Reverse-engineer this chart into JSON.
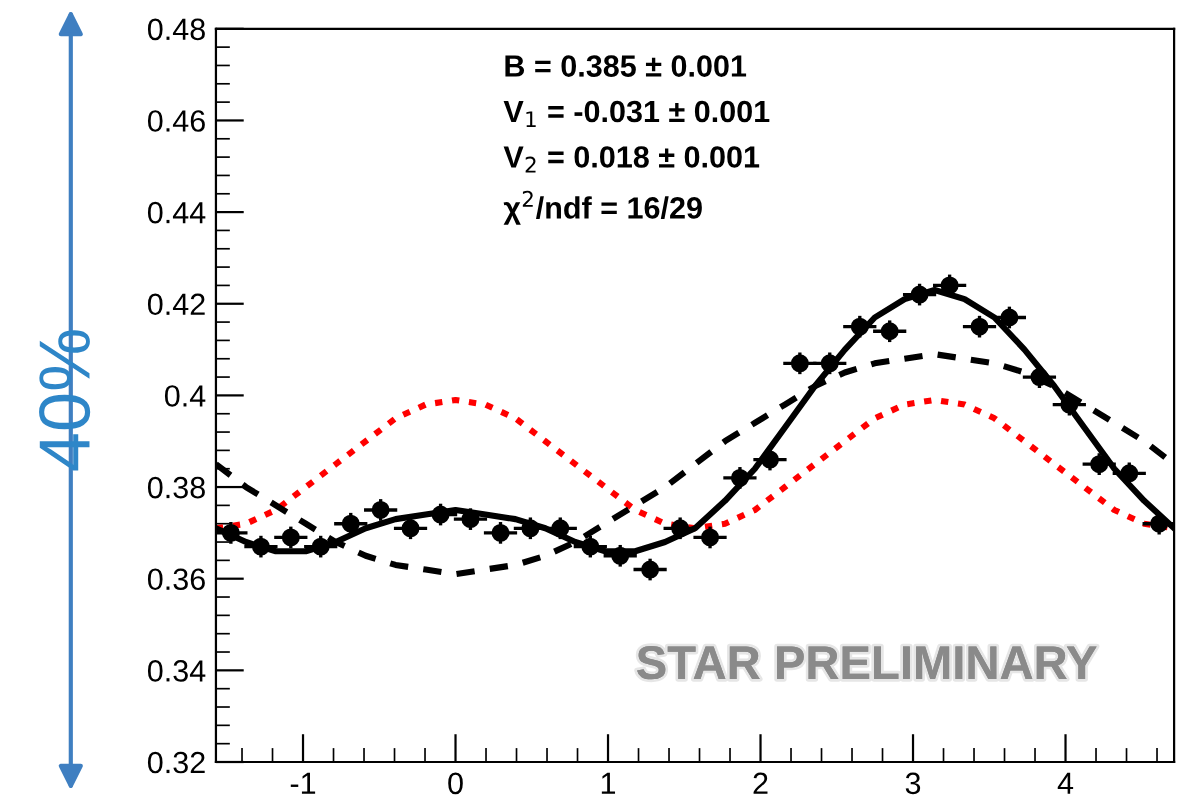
{
  "chart_data": {
    "type": "scatter",
    "annotations": [
      "B = 0.385 ± 0.001",
      "V$_{1}$ = -0.031 ± 0.001",
      "V$_{2}$ = 0.018 ± 0.001",
      "χ$^{2}$/ndf = 16/29",
      "STAR PRELIMINARY",
      "40%"
    ],
    "xlim": [
      -1.571,
      4.712
    ],
    "ylim": [
      0.32,
      0.48
    ],
    "xticks": [
      -1,
      0,
      1,
      2,
      3,
      4
    ],
    "yticks": [
      0.32,
      0.34,
      0.36,
      0.38,
      0.4,
      0.42,
      0.44,
      0.46,
      0.48
    ],
    "grid": false,
    "legend": false,
    "series": [
      {
        "type": "line",
        "color": "#ff0000",
        "line_style": "dotted",
        "marker": "none",
        "x": [
          -1.571,
          -1.374,
          -1.178,
          -0.982,
          -0.785,
          -0.589,
          -0.393,
          -0.196,
          0,
          0.196,
          0.393,
          0.589,
          0.785,
          0.982,
          1.178,
          1.374,
          1.571,
          1.767,
          1.963,
          2.16,
          2.356,
          2.553,
          2.749,
          2.945,
          3.142,
          3.338,
          3.534,
          3.731,
          3.927,
          4.123,
          4.32,
          4.516,
          4.712
        ],
        "values": [
          0.371,
          0.372,
          0.375,
          0.38,
          0.385,
          0.39,
          0.395,
          0.398,
          0.399,
          0.398,
          0.395,
          0.39,
          0.385,
          0.38,
          0.375,
          0.372,
          0.371,
          0.372,
          0.375,
          0.38,
          0.385,
          0.39,
          0.395,
          0.398,
          0.399,
          0.398,
          0.395,
          0.39,
          0.385,
          0.38,
          0.375,
          0.372,
          0.371
        ]
      },
      {
        "type": "line",
        "color": "#000000",
        "line_style": "dashed",
        "marker": "none",
        "x": [
          -1.571,
          -1.374,
          -1.178,
          -0.982,
          -0.785,
          -0.589,
          -0.393,
          -0.196,
          0,
          0.196,
          0.393,
          0.589,
          0.785,
          0.982,
          1.178,
          1.374,
          1.571,
          1.767,
          1.963,
          2.16,
          2.356,
          2.553,
          2.749,
          2.945,
          3.142,
          3.338,
          3.534,
          3.731,
          3.927,
          4.123,
          4.32,
          4.516,
          4.712
        ],
        "values": [
          0.385,
          0.38,
          0.376,
          0.372,
          0.368,
          0.365,
          0.363,
          0.362,
          0.361,
          0.362,
          0.363,
          0.365,
          0.368,
          0.372,
          0.376,
          0.38,
          0.385,
          0.39,
          0.394,
          0.398,
          0.402,
          0.405,
          0.407,
          0.408,
          0.409,
          0.408,
          0.407,
          0.405,
          0.402,
          0.398,
          0.394,
          0.39,
          0.385
        ]
      },
      {
        "type": "line",
        "color": "#000000",
        "line_style": "solid",
        "marker": "none",
        "x": [
          -1.571,
          -1.374,
          -1.178,
          -0.982,
          -0.785,
          -0.589,
          -0.393,
          -0.196,
          0,
          0.196,
          0.393,
          0.589,
          0.785,
          0.982,
          1.178,
          1.374,
          1.571,
          1.767,
          1.963,
          2.16,
          2.356,
          2.553,
          2.749,
          2.945,
          3.142,
          3.338,
          3.534,
          3.731,
          3.927,
          4.123,
          4.32,
          4.516,
          4.712
        ],
        "values": [
          0.371,
          0.368,
          0.366,
          0.366,
          0.368,
          0.371,
          0.373,
          0.374,
          0.375,
          0.374,
          0.373,
          0.371,
          0.368,
          0.366,
          0.366,
          0.368,
          0.371,
          0.377,
          0.384,
          0.393,
          0.402,
          0.41,
          0.417,
          0.421,
          0.423,
          0.421,
          0.417,
          0.41,
          0.402,
          0.393,
          0.384,
          0.377,
          0.371
        ]
      },
      {
        "color": "#000000",
        "marker": "circle",
        "x": [
          -1.473,
          -1.276,
          -1.08,
          -0.884,
          -0.687,
          -0.491,
          -0.295,
          -0.098,
          0.098,
          0.295,
          0.491,
          0.687,
          0.884,
          1.08,
          1.276,
          1.473,
          1.669,
          1.865,
          2.062,
          2.258,
          2.454,
          2.651,
          2.847,
          3.043,
          3.24,
          3.436,
          3.632,
          3.829,
          4.025,
          4.221,
          4.418,
          4.614
        ],
        "values": [
          0.37,
          0.367,
          0.369,
          0.367,
          0.372,
          0.375,
          0.371,
          0.374,
          0.373,
          0.37,
          0.371,
          0.371,
          0.367,
          0.365,
          0.362,
          0.371,
          0.369,
          0.382,
          0.386,
          0.407,
          0.407,
          0.415,
          0.414,
          0.422,
          0.424,
          0.415,
          0.417,
          0.404,
          0.398,
          0.385,
          0.383,
          0.372
        ],
        "errors": [
          0.002,
          0.002,
          0.002,
          0.002,
          0.002,
          0.002,
          0.002,
          0.002,
          0.002,
          0.002,
          0.002,
          0.002,
          0.002,
          0.002,
          0.002,
          0.002,
          0.002,
          0.002,
          0.002,
          0.002,
          0.002,
          0.002,
          0.002,
          0.002,
          0.002,
          0.002,
          0.002,
          0.002,
          0.002,
          0.002,
          0.002,
          0.002
        ],
        "xerrors": [
          0.098,
          0.098,
          0.098,
          0.098,
          0.098,
          0.098,
          0.098,
          0.098,
          0.098,
          0.098,
          0.098,
          0.098,
          0.098,
          0.098,
          0.098,
          0.098,
          0.098,
          0.098,
          0.098,
          0.098,
          0.098,
          0.098,
          0.098,
          0.098,
          0.098,
          0.098,
          0.098,
          0.098,
          0.098,
          0.098,
          0.098,
          0.098
        ]
      }
    ]
  }
}
